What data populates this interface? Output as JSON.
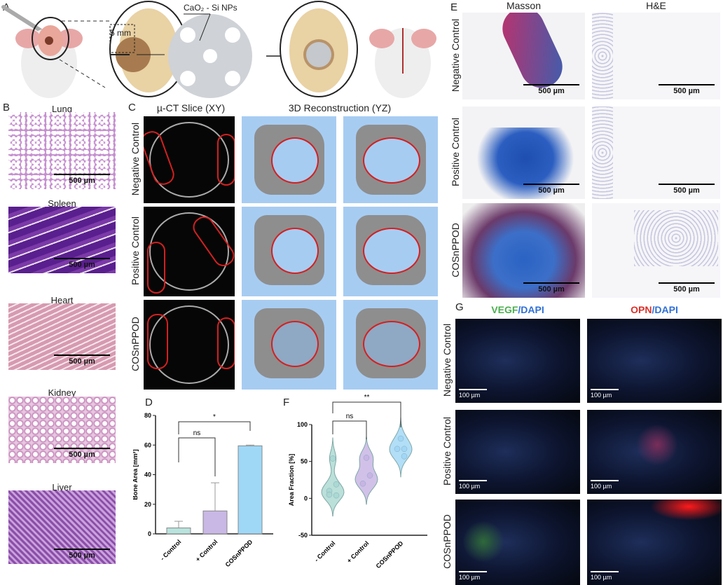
{
  "panel_A": {
    "letter": "A",
    "np_label": "CaO₂ - Si NPs",
    "defect_size": "5 mm"
  },
  "panel_B": {
    "letter": "B",
    "organs": [
      {
        "name": "Lung",
        "scale": "500 µm"
      },
      {
        "name": "Spleen",
        "scale": "500 µm"
      },
      {
        "name": "Heart",
        "scale": "500 µm"
      },
      {
        "name": "Kidney",
        "scale": "500 µm"
      },
      {
        "name": "Liver",
        "scale": "500 µm"
      }
    ]
  },
  "panel_C": {
    "letter": "C",
    "col1": "µ-CT Slice (XY)",
    "col2": "3D Reconstruction (YZ)",
    "rows": [
      "Negative Control",
      "Positive Control",
      "COSnPPOD"
    ]
  },
  "panel_E": {
    "letter": "E",
    "col1": "Masson",
    "col2": "H&E",
    "scale": "500 µm",
    "rows": [
      "Negative Control",
      "Positive Control",
      "COSnPPOD"
    ]
  },
  "panel_G": {
    "letter": "G",
    "col1_a": "VEGF",
    "col1_b": "/DAPI",
    "col2_a": "OPN",
    "col2_b": "/DAPI",
    "scale": "100 µm",
    "rows": [
      "Negative Control",
      "Positive Control",
      "COSnPPOD"
    ],
    "colors": {
      "vegf": "#4caf50",
      "opn": "#d9302a",
      "dapi": "#2f6fd6"
    }
  },
  "chart_data": [
    {
      "panel": "D",
      "type": "bar",
      "categories": [
        "- Control",
        "+ Control",
        "COSnPPOD"
      ],
      "values": [
        4,
        15.5,
        59.5
      ],
      "error_upper": [
        8.5,
        34.5,
        60
      ],
      "colors": [
        "#b9e3dd",
        "#c9b7e6",
        "#9fd8f7"
      ],
      "ylabel": "Bone Area [mm²]",
      "ylim": [
        0,
        80
      ],
      "yticks": [
        0,
        20,
        40,
        60,
        80
      ],
      "significance": [
        {
          "pair": [
            0,
            1
          ],
          "label": "ns"
        },
        {
          "pair": [
            0,
            2
          ],
          "label": "*"
        }
      ]
    },
    {
      "panel": "F",
      "type": "violin",
      "categories": [
        "- Control",
        "+ Control",
        "COSnPPOD"
      ],
      "points": [
        [
          54,
          19,
          10,
          4,
          5
        ],
        [
          55,
          31,
          20
        ],
        [
          81,
          67,
          67,
          57
        ]
      ],
      "colors": [
        "#a9d8d0",
        "#c6b2e4",
        "#9fd6f5"
      ],
      "ylabel": "Area Fraction [%]",
      "ylim": [
        -50,
        100
      ],
      "yticks": [
        -50,
        0,
        50,
        100
      ],
      "significance": [
        {
          "pair": [
            0,
            1
          ],
          "label": "ns"
        },
        {
          "pair": [
            0,
            2
          ],
          "label": "**"
        }
      ]
    }
  ]
}
